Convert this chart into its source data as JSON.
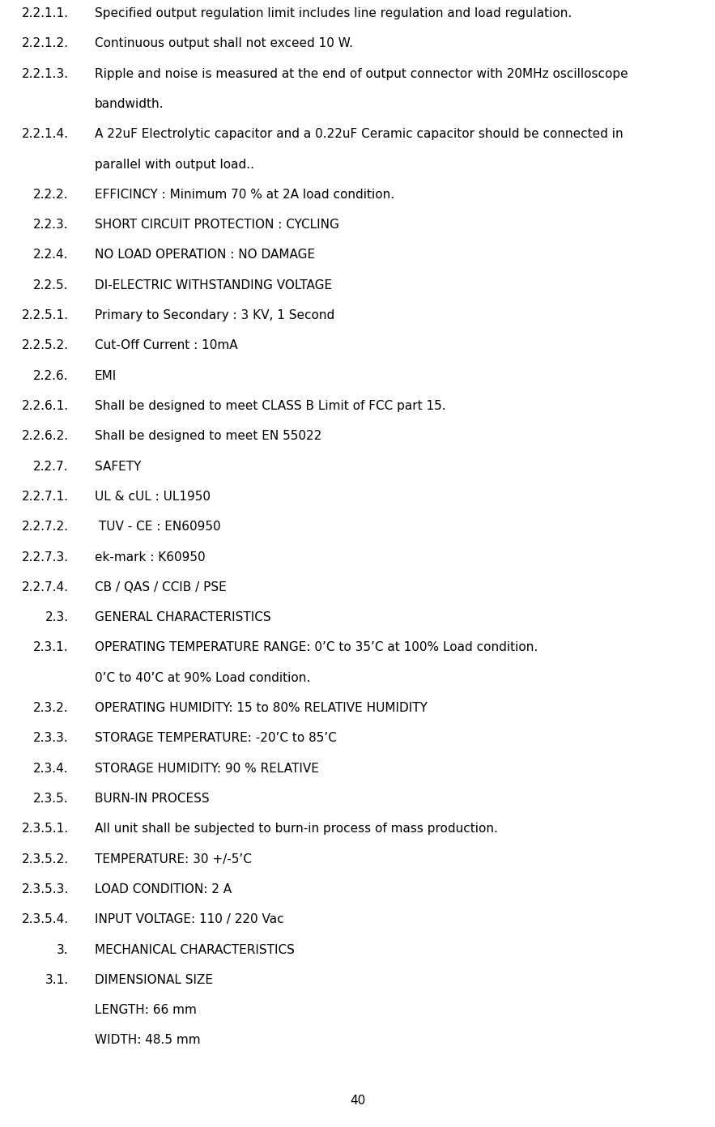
{
  "page_number": "40",
  "background_color": "#ffffff",
  "text_color": "#000000",
  "font_size": 11.0,
  "page_number_font_size": 11.0,
  "lines": [
    {
      "label": "2.2.1.1.",
      "text": "Specified output regulation limit includes line regulation and load regulation.",
      "extra_lines": []
    },
    {
      "label": "2.2.1.2.",
      "text": "Continuous output shall not exceed 10 W.",
      "extra_lines": []
    },
    {
      "label": "2.2.1.3.",
      "text": "Ripple and noise is measured at the end of output connector with 20MHz oscilloscope",
      "extra_lines": [
        "bandwidth."
      ]
    },
    {
      "label": "2.2.1.4.",
      "text": "A 22uF Electrolytic capacitor and a 0.22uF Ceramic capacitor should be connected in",
      "extra_lines": [
        "parallel with output load.."
      ]
    },
    {
      "label": "2.2.2.",
      "text": "EFFICINCY : Minimum 70 % at 2A load condition.",
      "extra_lines": []
    },
    {
      "label": "2.2.3.",
      "text": "SHORT CIRCUIT PROTECTION : CYCLING",
      "extra_lines": []
    },
    {
      "label": "2.2.4.",
      "text": "NO LOAD OPERATION : NO DAMAGE",
      "extra_lines": []
    },
    {
      "label": "2.2.5.",
      "text": "DI-ELECTRIC WITHSTANDING VOLTAGE",
      "extra_lines": []
    },
    {
      "label": "2.2.5.1.",
      "text": "Primary to Secondary : 3 KV, 1 Second",
      "extra_lines": []
    },
    {
      "label": "2.2.5.2.",
      "text": "Cut-Off Current : 10mA",
      "extra_lines": []
    },
    {
      "label": "2.2.6.",
      "text": "EMI",
      "extra_lines": []
    },
    {
      "label": "2.2.6.1.",
      "text": "Shall be designed to meet CLASS B Limit of FCC part 15.",
      "extra_lines": []
    },
    {
      "label": "2.2.6.2.",
      "text": "Shall be designed to meet EN 55022",
      "extra_lines": []
    },
    {
      "label": "2.2.7.",
      "text": "SAFETY",
      "extra_lines": []
    },
    {
      "label": "2.2.7.1.",
      "text": "UL & cUL : UL1950",
      "extra_lines": []
    },
    {
      "label": "2.2.7.2.",
      "text": " TUV - CE : EN60950",
      "extra_lines": []
    },
    {
      "label": "2.2.7.3.",
      "text": "ek-mark : K60950",
      "extra_lines": []
    },
    {
      "label": "2.2.7.4.",
      "text": "CB / QAS / CCIB / PSE",
      "extra_lines": []
    },
    {
      "label": "2.3.",
      "text": "GENERAL CHARACTERISTICS",
      "extra_lines": []
    },
    {
      "label": "2.3.1.",
      "text": "OPERATING TEMPERATURE RANGE: 0’C to 35’C at 100% Load condition.",
      "extra_lines": [
        "0’C to 40’C at 90% Load condition."
      ]
    },
    {
      "label": "2.3.2.",
      "text": "OPERATING HUMIDITY: 15 to 80% RELATIVE HUMIDITY",
      "extra_lines": []
    },
    {
      "label": "2.3.3.",
      "text": "STORAGE TEMPERATURE: -20’C to 85’C",
      "extra_lines": []
    },
    {
      "label": "2.3.4.",
      "text": "STORAGE HUMIDITY: 90 % RELATIVE",
      "extra_lines": []
    },
    {
      "label": "2.3.5.",
      "text": "BURN-IN PROCESS",
      "extra_lines": []
    },
    {
      "label": "2.3.5.1.",
      "text": "All unit shall be subjected to burn-in process of mass production.",
      "extra_lines": []
    },
    {
      "label": "2.3.5.2.",
      "text": "TEMPERATURE: 30 +/-5’C",
      "extra_lines": []
    },
    {
      "label": "2.3.5.3.",
      "text": "LOAD CONDITION: 2 A",
      "extra_lines": []
    },
    {
      "label": "2.3.5.4.",
      "text": "INPUT VOLTAGE: 110 / 220 Vac",
      "extra_lines": []
    },
    {
      "label": "3.",
      "text": "MECHANICAL CHARACTERISTICS",
      "extra_lines": []
    },
    {
      "label": "3.1.",
      "text": "DIMENSIONAL SIZE",
      "extra_lines": [
        "LENGTH: 66 mm",
        "WIDTH: 48.5 mm"
      ]
    }
  ]
}
